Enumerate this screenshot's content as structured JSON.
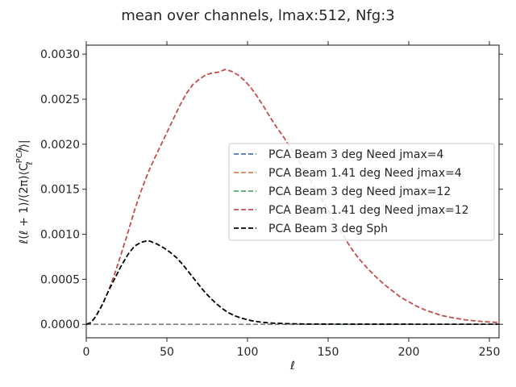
{
  "chart_data": {
    "type": "line",
    "title": "mean over channels, lmax:512, Nfg:3",
    "xlabel": "ℓ",
    "ylabel_parts": {
      "lead": "ℓ(ℓ + 1)/(2π)⟨C",
      "sub": "ℓ",
      "sup": "PCA",
      "tail": "/⟩|"
    },
    "xlim": [
      0,
      256
    ],
    "ylim": [
      -0.00015,
      0.0031
    ],
    "xticks": [
      0,
      50,
      100,
      150,
      200,
      250
    ],
    "xtick_labels": [
      "0",
      "50",
      "100",
      "150",
      "200",
      "250"
    ],
    "yticks": [
      0,
      0.0005,
      0.001,
      0.0015,
      0.002,
      0.0025,
      0.003
    ],
    "ytick_labels": [
      "0.0000",
      "0.0005",
      "0.0010",
      "0.0015",
      "0.0020",
      "0.0025",
      "0.0030"
    ],
    "grid": false,
    "legend_position": "center-right",
    "zero_line": {
      "y": 0,
      "color": "#808080"
    },
    "series": [
      {
        "name": "PCA Beam 3 deg Need jmax=4",
        "color": "#4c72b0",
        "x": [
          0,
          3,
          6,
          10,
          14,
          18,
          22,
          26,
          30,
          34,
          38,
          40,
          44,
          48,
          52,
          56,
          60,
          64,
          68,
          72,
          76,
          80,
          84,
          88,
          92,
          96,
          100,
          104,
          108,
          112,
          116,
          120,
          125,
          130,
          140,
          150,
          160,
          180,
          200,
          220,
          240,
          256
        ],
        "y": [
          0,
          2e-05,
          9e-05,
          0.00022,
          0.00038,
          0.00052,
          0.00066,
          0.00078,
          0.00087,
          0.00091,
          0.00093,
          0.00092,
          0.00089,
          0.00085,
          0.0008,
          0.00074,
          0.00066,
          0.00057,
          0.00048,
          0.00039,
          0.00031,
          0.00024,
          0.00018,
          0.00013,
          9.5e-05,
          7e-05,
          5e-05,
          3.5e-05,
          2.5e-05,
          1.8e-05,
          1.3e-05,
          1e-05,
          7e-06,
          5e-06,
          3e-06,
          2e-06,
          1.5e-06,
          1e-06,
          8e-07,
          6e-07,
          5e-07,
          4e-07
        ]
      },
      {
        "name": "PCA Beam 1.41 deg Need jmax=4",
        "color": "#dd8452",
        "x": [
          0,
          3,
          6,
          10,
          14,
          18,
          22,
          26,
          30,
          34,
          38,
          42,
          46,
          50,
          54,
          58,
          62,
          66,
          70,
          74,
          78,
          82,
          86,
          90,
          94,
          98,
          102,
          106,
          110,
          114,
          118,
          122,
          126,
          130,
          134,
          138,
          142,
          146,
          150,
          154,
          158,
          162,
          166,
          170,
          175,
          180,
          185,
          190,
          195,
          200,
          205,
          210,
          215,
          220,
          225,
          230,
          235,
          240,
          245,
          250,
          256
        ],
        "y": [
          0,
          2e-05,
          9e-05,
          0.00022,
          0.00038,
          0.00058,
          0.0008,
          0.00103,
          0.00127,
          0.00148,
          0.00167,
          0.00183,
          0.00198,
          0.00213,
          0.00228,
          0.00243,
          0.00256,
          0.00266,
          0.00272,
          0.00277,
          0.00279,
          0.0028,
          0.00283,
          0.00281,
          0.00277,
          0.00271,
          0.00263,
          0.00253,
          0.00242,
          0.0023,
          0.00219,
          0.00209,
          0.00198,
          0.00187,
          0.00175,
          0.00163,
          0.00151,
          0.00139,
          0.00127,
          0.00114,
          0.00103,
          0.00091,
          0.0008,
          0.00071,
          0.00061,
          0.00052,
          0.00044,
          0.00037,
          0.0003,
          0.00025,
          0.0002,
          0.00016,
          0.00013,
          0.0001,
          8e-05,
          6.5e-05,
          5e-05,
          4e-05,
          3.2e-05,
          2.5e-05,
          2e-05
        ]
      },
      {
        "name": "PCA Beam 3 deg Need jmax=12",
        "color": "#55a868",
        "x": [
          0,
          3,
          6,
          10,
          14,
          18,
          22,
          26,
          30,
          34,
          38,
          40,
          44,
          48,
          52,
          56,
          60,
          64,
          68,
          72,
          76,
          80,
          84,
          88,
          92,
          96,
          100,
          104,
          108,
          112,
          116,
          120,
          125,
          130,
          140,
          150,
          160,
          180,
          200,
          220,
          240,
          256
        ],
        "y": [
          0,
          2e-05,
          9e-05,
          0.00022,
          0.00038,
          0.00052,
          0.00066,
          0.00078,
          0.00087,
          0.00091,
          0.00093,
          0.00092,
          0.00089,
          0.00085,
          0.0008,
          0.00074,
          0.00066,
          0.00057,
          0.00048,
          0.00039,
          0.00031,
          0.00024,
          0.00018,
          0.00013,
          9.5e-05,
          7e-05,
          5e-05,
          3.5e-05,
          2.5e-05,
          1.8e-05,
          1.3e-05,
          1e-05,
          7e-06,
          5e-06,
          3e-06,
          2e-06,
          1.5e-06,
          1e-06,
          8e-07,
          6e-07,
          5e-07,
          4e-07
        ]
      },
      {
        "name": "PCA Beam 1.41 deg Need jmax=12",
        "color": "#c44e52",
        "x": [
          0,
          3,
          6,
          10,
          14,
          18,
          22,
          26,
          30,
          34,
          38,
          42,
          46,
          50,
          54,
          58,
          62,
          66,
          70,
          74,
          78,
          82,
          86,
          90,
          94,
          98,
          102,
          106,
          110,
          114,
          118,
          122,
          126,
          130,
          134,
          138,
          142,
          146,
          150,
          154,
          158,
          162,
          166,
          170,
          175,
          180,
          185,
          190,
          195,
          200,
          205,
          210,
          215,
          220,
          225,
          230,
          235,
          240,
          245,
          250,
          256
        ],
        "y": [
          0,
          2e-05,
          9e-05,
          0.00022,
          0.00038,
          0.00058,
          0.0008,
          0.00103,
          0.00127,
          0.00148,
          0.00167,
          0.00183,
          0.00198,
          0.00213,
          0.00228,
          0.00243,
          0.00256,
          0.00266,
          0.00272,
          0.00277,
          0.00279,
          0.0028,
          0.00283,
          0.00281,
          0.00277,
          0.00271,
          0.00263,
          0.00253,
          0.00242,
          0.0023,
          0.00219,
          0.00209,
          0.00198,
          0.00187,
          0.00175,
          0.00163,
          0.00151,
          0.00139,
          0.00127,
          0.00114,
          0.00103,
          0.00091,
          0.0008,
          0.00071,
          0.00061,
          0.00052,
          0.00044,
          0.00037,
          0.0003,
          0.00025,
          0.0002,
          0.00016,
          0.00013,
          0.0001,
          8e-05,
          6.5e-05,
          5e-05,
          4e-05,
          3.2e-05,
          2.5e-05,
          2e-05
        ]
      },
      {
        "name": "PCA Beam 3 deg Sph",
        "color": "#000000",
        "x": [
          0,
          3,
          6,
          10,
          14,
          18,
          22,
          26,
          30,
          34,
          38,
          40,
          44,
          48,
          52,
          56,
          60,
          64,
          68,
          72,
          76,
          80,
          84,
          88,
          92,
          96,
          100,
          104,
          108,
          112,
          116,
          120,
          125,
          130,
          140,
          150,
          160,
          180,
          200,
          220,
          240,
          256
        ],
        "y": [
          0,
          2e-05,
          9e-05,
          0.00022,
          0.00038,
          0.00052,
          0.00066,
          0.00078,
          0.00087,
          0.00091,
          0.00093,
          0.00092,
          0.00089,
          0.00085,
          0.0008,
          0.00074,
          0.00066,
          0.00057,
          0.00048,
          0.00039,
          0.00031,
          0.00024,
          0.00018,
          0.00013,
          9.5e-05,
          7e-05,
          5e-05,
          3.5e-05,
          2.5e-05,
          1.8e-05,
          1.3e-05,
          1e-05,
          7e-06,
          5e-06,
          3e-06,
          2e-06,
          1.5e-06,
          1e-06,
          8e-07,
          6e-07,
          5e-07,
          4e-07
        ]
      }
    ]
  }
}
